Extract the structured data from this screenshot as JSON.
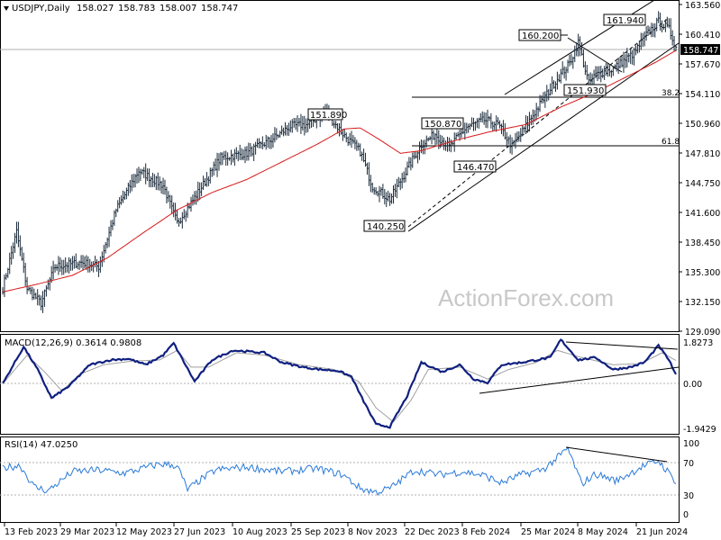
{
  "chart_data": [
    {
      "type": "candlestick",
      "header": {
        "symbol": "USDJPY,Daily",
        "open": "158.027",
        "high": "158.783",
        "low": "158.007",
        "close": "158.747"
      },
      "current_price": "158.747",
      "y_ticks": [
        "163.560",
        "160.410",
        "157.670",
        "154.110",
        "150.960",
        "147.810",
        "144.750",
        "141.600",
        "138.450",
        "135.300",
        "132.150",
        "129.090"
      ],
      "ylim": [
        129.09,
        163.56
      ],
      "x_ticks": [
        "13 Feb 2023",
        "29 Mar 2023",
        "12 May 2023",
        "27 Jun 2023",
        "10 Aug 2023",
        "25 Sep 2023",
        "8 Nov 2023",
        "22 Dec 2023",
        "8 Feb 2024",
        "25 Mar 2024",
        "8 May 2024",
        "21 Jun 2024"
      ],
      "annotations": [
        {
          "text": "151.890",
          "value": 151.89
        },
        {
          "text": "140.250",
          "value": 140.25
        },
        {
          "text": "150.870",
          "value": 150.87
        },
        {
          "text": "146.470",
          "value": 146.47
        },
        {
          "text": "160.200",
          "value": 160.2
        },
        {
          "text": "151.930",
          "value": 151.93
        },
        {
          "text": "161.940",
          "value": 161.94
        }
      ],
      "fib_levels": [
        {
          "label": "38.2",
          "value": 153.7
        },
        {
          "label": "61.8",
          "value": 148.5
        }
      ],
      "series": [
        {
          "name": "price_close",
          "color": "#0a1a2a",
          "anchors": [
            [
              0,
              131
            ],
            [
              8,
              137.5
            ],
            [
              14,
              131
            ],
            [
              22,
              129.3
            ],
            [
              30,
              133.5
            ],
            [
              45,
              134
            ],
            [
              55,
              133.5
            ],
            [
              65,
              140
            ],
            [
              78,
              144.5
            ],
            [
              92,
              142.8
            ],
            [
              100,
              138.5
            ],
            [
              112,
              142
            ],
            [
              125,
              146
            ],
            [
              140,
              146.5
            ],
            [
              155,
              148.2
            ],
            [
              165,
              149.6
            ],
            [
              175,
              149.8
            ],
            [
              185,
              151.3
            ],
            [
              190,
              150
            ],
            [
              196,
              148.5
            ],
            [
              205,
              146.7
            ],
            [
              212,
              142.7
            ],
            [
              222,
              141.2
            ],
            [
              230,
              144
            ],
            [
              240,
              147.5
            ],
            [
              248,
              148.7
            ],
            [
              256,
              147.2
            ],
            [
              266,
              149.5
            ],
            [
              276,
              150.3
            ],
            [
              284,
              149.8
            ],
            [
              292,
              147.3
            ],
            [
              298,
              149
            ],
            [
              306,
              151.5
            ],
            [
              316,
              154.5
            ],
            [
              325,
              156.8
            ],
            [
              330,
              159.2
            ],
            [
              336,
              154.5
            ],
            [
              340,
              155.5
            ],
            [
              350,
              156.2
            ],
            [
              362,
              158
            ],
            [
              370,
              160.3
            ],
            [
              376,
              161.6
            ],
            [
              382,
              160.7
            ],
            [
              386,
              158.7
            ]
          ]
        },
        {
          "name": "ma_55",
          "color": "#d81a1a",
          "anchors": [
            [
              0,
              130.6
            ],
            [
              20,
              131.5
            ],
            [
              40,
              132.5
            ],
            [
              60,
              134.5
            ],
            [
              80,
              137.3
            ],
            [
              100,
              140
            ],
            [
              120,
              142
            ],
            [
              140,
              143.5
            ],
            [
              160,
              145.5
            ],
            [
              180,
              147.5
            ],
            [
              196,
              149.3
            ],
            [
              205,
              149.4
            ],
            [
              215,
              148.2
            ],
            [
              228,
              146.5
            ],
            [
              240,
              146.8
            ],
            [
              260,
              148
            ],
            [
              280,
              149
            ],
            [
              300,
              149.8
            ],
            [
              320,
              151.8
            ],
            [
              340,
              153.5
            ],
            [
              360,
              155.5
            ],
            [
              375,
              157
            ],
            [
              386,
              158.3
            ]
          ]
        },
        {
          "name": "trend_lines",
          "color": "#000000",
          "note": "channel from 140.250 low"
        }
      ]
    },
    {
      "type": "line",
      "title": "MACD(12,26,9) 0.3614 0.9808",
      "y_ticks": [
        "1.8273",
        "0.00",
        "-1.9429"
      ],
      "ylim": [
        -1.9429,
        1.8273
      ],
      "series": [
        {
          "name": "MACD",
          "color": "#102080",
          "anchors": [
            [
              0,
              0
            ],
            [
              12,
              1.55
            ],
            [
              20,
              0.6
            ],
            [
              28,
              -0.6
            ],
            [
              38,
              -0.1
            ],
            [
              50,
              0.8
            ],
            [
              62,
              1.0
            ],
            [
              72,
              1.05
            ],
            [
              82,
              0.8
            ],
            [
              92,
              1.2
            ],
            [
              98,
              1.7
            ],
            [
              104,
              0.9
            ],
            [
              110,
              0.1
            ],
            [
              120,
              1.0
            ],
            [
              132,
              1.4
            ],
            [
              150,
              1.3
            ],
            [
              160,
              0.9
            ],
            [
              172,
              0.7
            ],
            [
              182,
              0.6
            ],
            [
              192,
              0.55
            ],
            [
              200,
              0.3
            ],
            [
              206,
              -0.6
            ],
            [
              214,
              -1.7
            ],
            [
              222,
              -1.8
            ],
            [
              232,
              -0.5
            ],
            [
              240,
              0.9
            ],
            [
              252,
              0.5
            ],
            [
              262,
              0.8
            ],
            [
              270,
              0.2
            ],
            [
              278,
              0.05
            ],
            [
              286,
              0.8
            ],
            [
              298,
              0.9
            ],
            [
              306,
              1.0
            ],
            [
              314,
              1.1
            ],
            [
              320,
              1.85
            ],
            [
              330,
              1.0
            ],
            [
              340,
              1.1
            ],
            [
              350,
              0.6
            ],
            [
              360,
              0.7
            ],
            [
              368,
              0.9
            ],
            [
              376,
              1.6
            ],
            [
              382,
              1.0
            ],
            [
              386,
              0.36
            ]
          ]
        },
        {
          "name": "Signal",
          "color": "#a0a0a0",
          "anchors": [
            [
              0,
              0
            ],
            [
              14,
              1.2
            ],
            [
              24,
              0.5
            ],
            [
              34,
              -0.3
            ],
            [
              44,
              0.4
            ],
            [
              58,
              0.8
            ],
            [
              74,
              0.95
            ],
            [
              90,
              1.0
            ],
            [
              100,
              1.4
            ],
            [
              108,
              0.7
            ],
            [
              118,
              0.7
            ],
            [
              134,
              1.3
            ],
            [
              150,
              1.2
            ],
            [
              170,
              0.8
            ],
            [
              190,
              0.6
            ],
            [
              204,
              0.1
            ],
            [
              214,
              -1.0
            ],
            [
              224,
              -1.6
            ],
            [
              234,
              -0.7
            ],
            [
              244,
              0.6
            ],
            [
              262,
              0.7
            ],
            [
              278,
              0.2
            ],
            [
              290,
              0.6
            ],
            [
              306,
              0.9
            ],
            [
              318,
              1.4
            ],
            [
              332,
              1.1
            ],
            [
              350,
              0.8
            ],
            [
              366,
              0.85
            ],
            [
              378,
              1.3
            ],
            [
              386,
              0.98
            ]
          ]
        }
      ]
    },
    {
      "type": "line",
      "title": "RSI(14) 47.0250",
      "y_ticks": [
        "100",
        "70",
        "30",
        "0"
      ],
      "ylim": [
        0,
        100
      ],
      "series": [
        {
          "name": "RSI",
          "color": "#2a7ad8",
          "anchors": [
            [
              0,
              65
            ],
            [
              10,
              68
            ],
            [
              18,
              40
            ],
            [
              26,
              35
            ],
            [
              40,
              60
            ],
            [
              55,
              62
            ],
            [
              70,
              58
            ],
            [
              90,
              70
            ],
            [
              100,
              68
            ],
            [
              106,
              36
            ],
            [
              112,
              47
            ],
            [
              122,
              62
            ],
            [
              140,
              66
            ],
            [
              160,
              60
            ],
            [
              180,
              64
            ],
            [
              195,
              56
            ],
            [
              205,
              38
            ],
            [
              214,
              33
            ],
            [
              222,
              38
            ],
            [
              236,
              62
            ],
            [
              250,
              56
            ],
            [
              264,
              60
            ],
            [
              276,
              55
            ],
            [
              286,
              45
            ],
            [
              296,
              55
            ],
            [
              310,
              63
            ],
            [
              318,
              78
            ],
            [
              324,
              90
            ],
            [
              332,
              44
            ],
            [
              340,
              57
            ],
            [
              352,
              48
            ],
            [
              366,
              66
            ],
            [
              376,
              74
            ],
            [
              382,
              58
            ],
            [
              386,
              47
            ]
          ]
        }
      ]
    }
  ],
  "watermark": "ActionForex.com"
}
